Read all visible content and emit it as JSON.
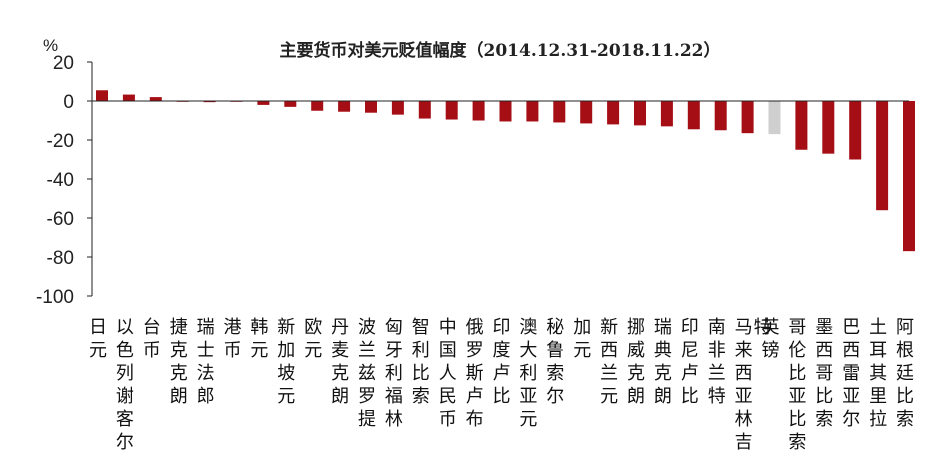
{
  "chart_data": {
    "type": "bar",
    "title": "主要货币对美元贬值幅度（2014.12.31-2018.11.22）",
    "ylabel": "%",
    "ylim": [
      -100,
      20
    ],
    "yticks": [
      "20",
      "0",
      "-20",
      "-40",
      "-60",
      "-80",
      "-100"
    ],
    "ytick_values": [
      20,
      0,
      -20,
      -40,
      -60,
      -80,
      -100
    ],
    "grid": false,
    "legend": "none",
    "colors": {
      "default": "#a50e14",
      "highlight": "#cfcfcf"
    },
    "categories": [
      "日元",
      "以色列谢客尔",
      "台币",
      "捷克克朗",
      "瑞士法郎",
      "港币",
      "韩元",
      "新加坡元",
      "欧元",
      "丹麦克朗",
      "波兰兹罗提",
      "匈牙利福林",
      "智利比索",
      "中国人民币",
      "俄罗斯卢布",
      "印度卢比",
      "澳大利亚元",
      "秘鲁索尔",
      "加元",
      "新西兰元",
      "挪威克朗",
      "瑞典克朗",
      "印尼卢比",
      "南非兰特",
      "马来西亚林吉特",
      "英镑",
      "哥伦比亚比索",
      "墨西哥比索",
      "巴西雷亚尔",
      "土耳其里拉",
      "阿根廷比索"
    ],
    "values": [
      5.5,
      3.3,
      2.0,
      -0.3,
      -0.6,
      -0.3,
      -2.0,
      -3.0,
      -5.0,
      -5.5,
      -6.0,
      -7.0,
      -9.0,
      -9.5,
      -10.0,
      -10.5,
      -10.5,
      -11.0,
      -11.5,
      -12.0,
      -12.5,
      -13.0,
      -14.5,
      -15.0,
      -16.5,
      -17.0,
      -25.0,
      -27.0,
      -30.0,
      -56.0,
      -77.0
    ],
    "highlight_index": 25
  }
}
